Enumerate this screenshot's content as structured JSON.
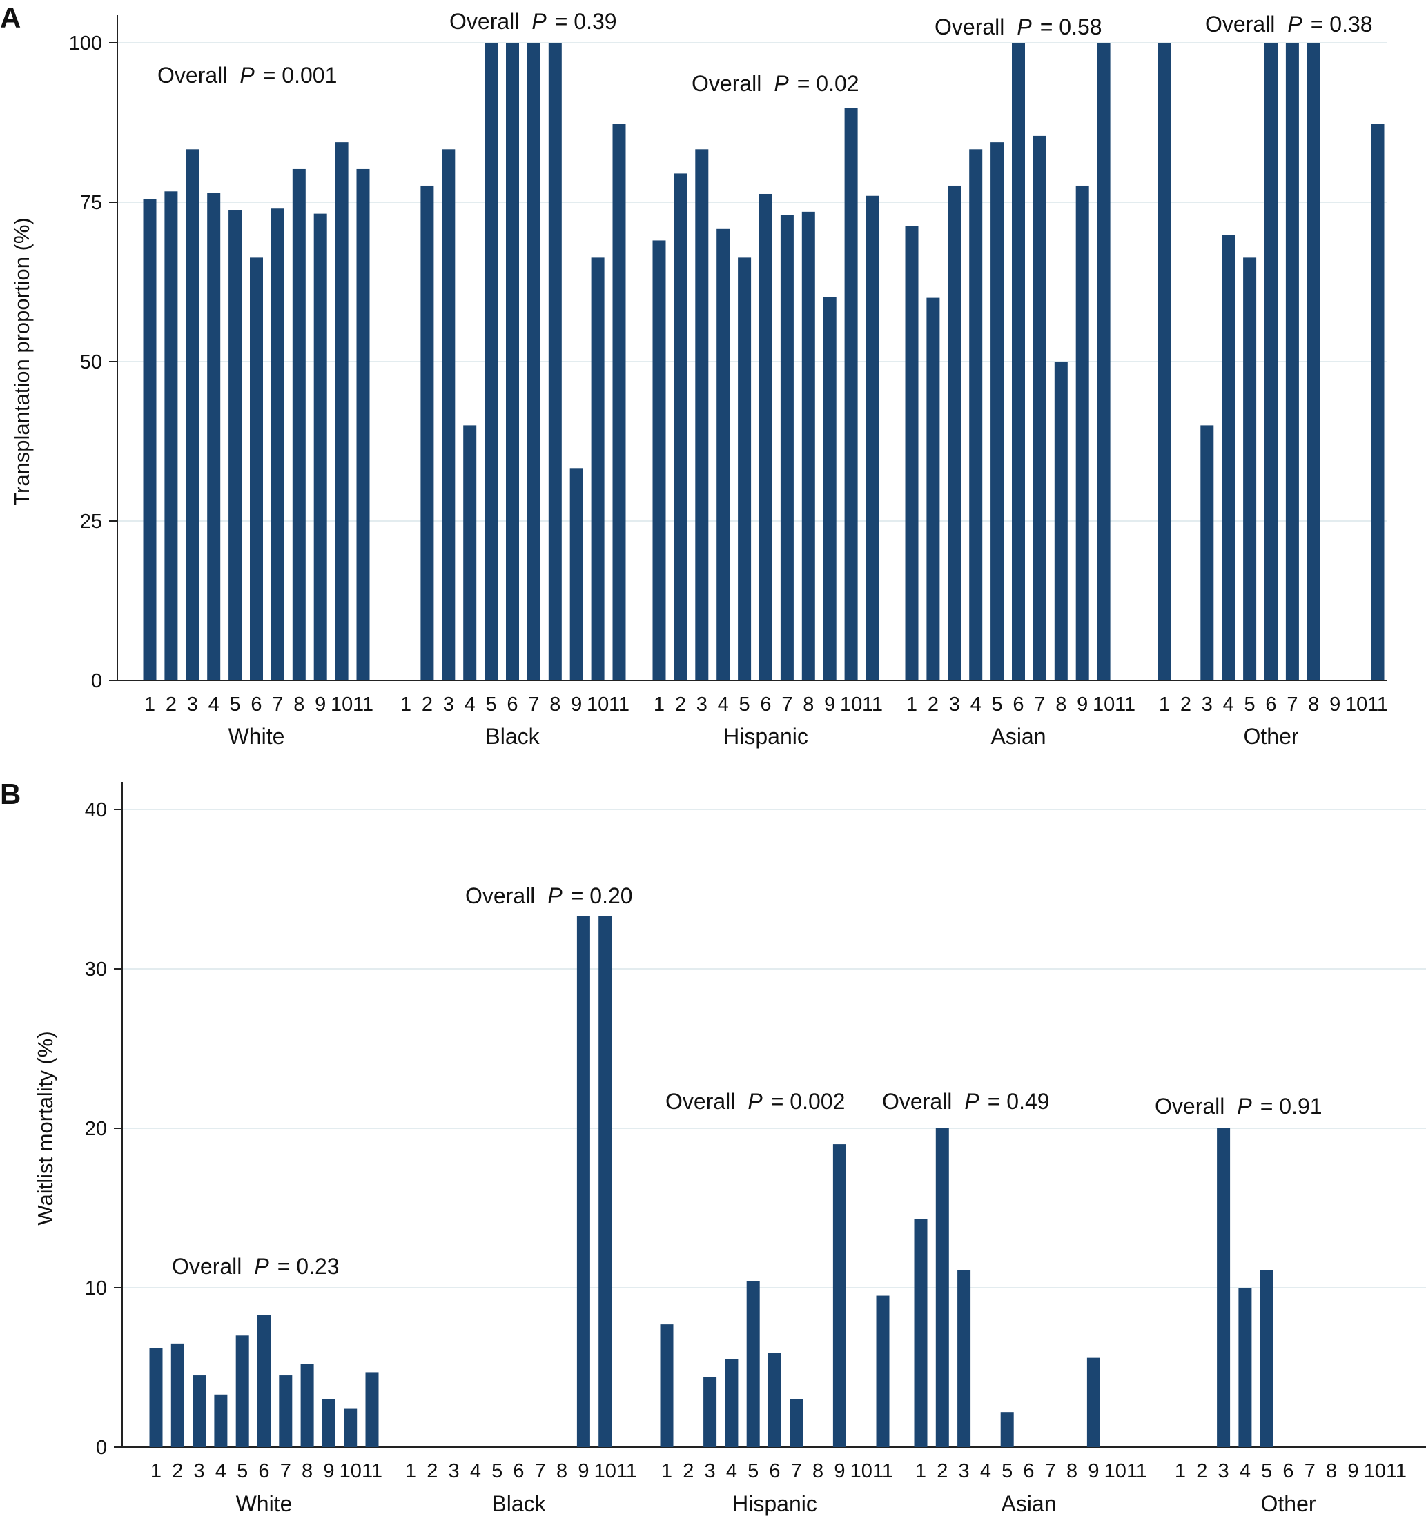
{
  "colors": {
    "bar": "#1b4571",
    "grid": "#e3ecef",
    "axis": "#222222"
  },
  "chart_data": [
    {
      "type": "bar",
      "panel_label": "A",
      "ylabel": "Transplantation proportion (%)",
      "ylim": [
        0,
        100
      ],
      "yticks": [
        0,
        25,
        50,
        75,
        100
      ],
      "grid": true,
      "categories": [
        "1",
        "2",
        "3",
        "4",
        "5",
        "6",
        "7",
        "8",
        "9",
        "10",
        "11"
      ],
      "groups": [
        {
          "name": "White",
          "annotation": {
            "prefix": "Overall",
            "p": "P",
            "suffix": "= 0.001"
          },
          "values": [
            75.5,
            76.7,
            83.3,
            76.5,
            73.7,
            66.3,
            74.0,
            80.2,
            73.2,
            84.4,
            80.2
          ]
        },
        {
          "name": "Black",
          "annotation": {
            "prefix": "Overall",
            "p": "P",
            "suffix": "= 0.39"
          },
          "values": [
            null,
            77.6,
            83.3,
            40.0,
            100,
            100,
            100,
            100,
            33.3,
            66.3,
            87.3
          ]
        },
        {
          "name": "Hispanic",
          "annotation": {
            "prefix": "Overall",
            "p": "P",
            "suffix": "= 0.02"
          },
          "values": [
            69.0,
            79.5,
            83.3,
            70.8,
            66.3,
            76.3,
            73.0,
            73.5,
            60.1,
            89.8,
            76.0
          ]
        },
        {
          "name": "Asian",
          "annotation": {
            "prefix": "Overall",
            "p": "P",
            "suffix": "= 0.58"
          },
          "values": [
            71.3,
            60.0,
            77.6,
            83.3,
            84.4,
            100,
            85.4,
            50.0,
            77.6,
            100,
            null
          ]
        },
        {
          "name": "Other",
          "annotation": {
            "prefix": "Overall",
            "p": "P",
            "suffix": "= 0.38"
          },
          "values": [
            100,
            null,
            40.0,
            69.9,
            66.3,
            100,
            100,
            100,
            null,
            null,
            87.3
          ]
        }
      ]
    },
    {
      "type": "bar",
      "panel_label": "B",
      "ylabel": "Waitlist mortality (%)",
      "ylim": [
        0,
        40
      ],
      "yticks": [
        0,
        10,
        20,
        30,
        40
      ],
      "grid": true,
      "categories": [
        "1",
        "2",
        "3",
        "4",
        "5",
        "6",
        "7",
        "8",
        "9",
        "10",
        "11"
      ],
      "groups": [
        {
          "name": "White",
          "annotation": {
            "prefix": "Overall",
            "p": "P",
            "suffix": "= 0.23"
          },
          "values": [
            6.2,
            6.5,
            4.5,
            3.3,
            7.0,
            8.3,
            4.5,
            5.2,
            3.0,
            2.4,
            4.7
          ]
        },
        {
          "name": "Black",
          "annotation": {
            "prefix": "Overall",
            "p": "P",
            "suffix": "= 0.20"
          },
          "values": [
            null,
            null,
            null,
            null,
            null,
            null,
            null,
            null,
            33.3,
            33.3,
            null
          ]
        },
        {
          "name": "Hispanic",
          "annotation": {
            "prefix": "Overall",
            "p": "P",
            "suffix": "= 0.002"
          },
          "values": [
            7.7,
            null,
            4.4,
            5.5,
            10.4,
            5.9,
            3.0,
            null,
            19.0,
            null,
            9.5
          ]
        },
        {
          "name": "Asian",
          "annotation": {
            "prefix": "Overall",
            "p": "P",
            "suffix": "= 0.49"
          },
          "values": [
            14.3,
            20.0,
            11.1,
            null,
            2.2,
            null,
            null,
            null,
            5.6,
            null,
            null
          ]
        },
        {
          "name": "Other",
          "annotation": {
            "prefix": "Overall",
            "p": "P",
            "suffix": "= 0.91"
          },
          "values": [
            null,
            null,
            20.0,
            10.0,
            11.1,
            null,
            null,
            null,
            null,
            null,
            null
          ]
        }
      ]
    }
  ]
}
